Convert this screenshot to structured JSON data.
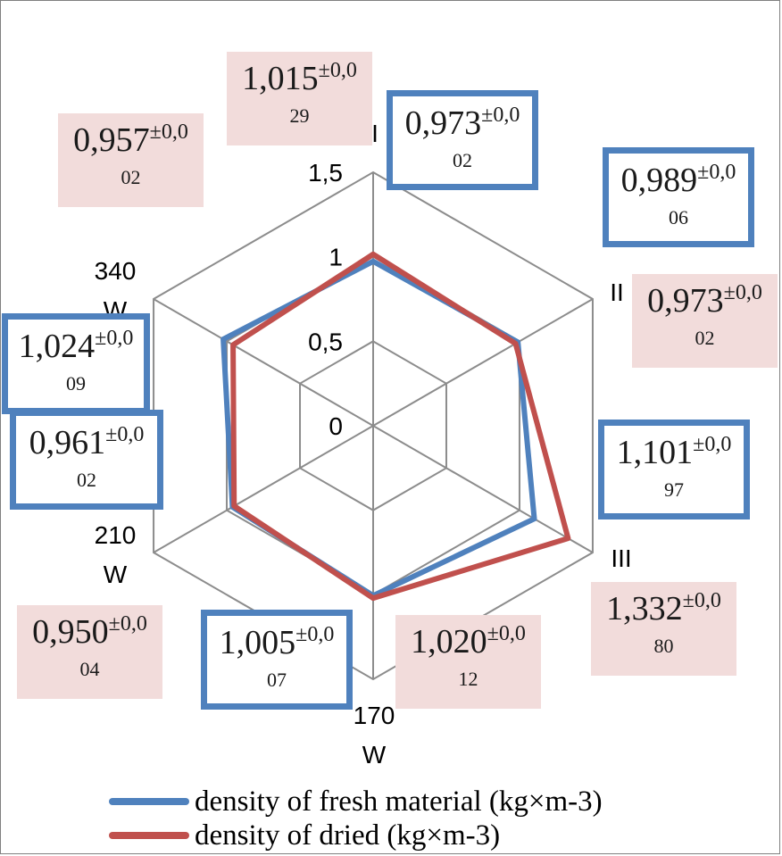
{
  "chart_data": {
    "type": "radar",
    "categories": [
      "I",
      "II",
      "III",
      "170 W",
      "210 W",
      "340 W"
    ],
    "radial_ticks": [
      "0",
      "0,5",
      "1",
      "1,5"
    ],
    "rlim": [
      0,
      1.5
    ],
    "series": [
      {
        "name": "density of fresh material (kg×m-3)",
        "color": "#4f81bd",
        "values": [
          0.973,
          0.989,
          1.101,
          1.005,
          0.961,
          1.024
        ]
      },
      {
        "name": "density of dried (kg×m-3)",
        "color": "#c0504d",
        "values": [
          1.015,
          0.973,
          1.332,
          1.02,
          0.95,
          0.957
        ]
      }
    ],
    "annotations": [
      {
        "series": "fresh",
        "value": "0,973",
        "sup": "±0,0",
        "sub": "02"
      },
      {
        "series": "fresh",
        "value": "0,989",
        "sup": "±0,0",
        "sub": "06"
      },
      {
        "series": "fresh",
        "value": "1,101",
        "sup": "±0,0",
        "sub": "97"
      },
      {
        "series": "fresh",
        "value": "1,005",
        "sup": "±0,0",
        "sub": "07"
      },
      {
        "series": "fresh",
        "value": "0,961",
        "sup": "±0,0",
        "sub": "02"
      },
      {
        "series": "fresh",
        "value": "1,024",
        "sup": "±0,0",
        "sub": "09"
      },
      {
        "series": "dried",
        "value": "1,015",
        "sup": "±0,0",
        "sub": "29"
      },
      {
        "series": "dried",
        "value": "0,973",
        "sup": "±0,0",
        "sub": "02"
      },
      {
        "series": "dried",
        "value": "1,332",
        "sup": "±0,0",
        "sub": "80"
      },
      {
        "series": "dried",
        "value": "1,020",
        "sup": "±0,0",
        "sub": "12"
      },
      {
        "series": "dried",
        "value": "0,950",
        "sup": "±0,0",
        "sub": "04"
      },
      {
        "series": "dried",
        "value": "0,957",
        "sup": "±0,0",
        "sub": "02"
      }
    ],
    "legend_position": "bottom",
    "grid": true
  },
  "category_labels": {
    "c1": "I",
    "c2": "II",
    "c3": "III",
    "c4_num": "170",
    "c4_unit": "W",
    "c5_num": "210",
    "c5_unit": "W",
    "c6_num": "340",
    "c6_unit": "W"
  },
  "colors": {
    "fresh": "#4f81bd",
    "dried": "#c0504d",
    "grid": "#8c8c8c",
    "label_fill": "#f2dcdb"
  }
}
